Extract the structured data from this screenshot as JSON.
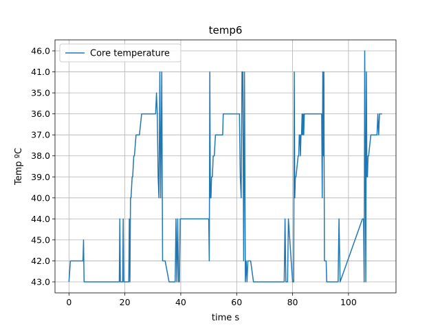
{
  "chart_data": {
    "type": "line",
    "title": "temp6",
    "xlabel": "time s",
    "ylabel": "Temp ºC",
    "xlim": [
      -5,
      117
    ],
    "xticks": [
      0,
      20,
      40,
      60,
      80,
      100
    ],
    "y_categories": [
      "43.0",
      "42.0",
      "45.0",
      "44.0",
      "40.0",
      "39.0",
      "38.0",
      "37.0",
      "36.0",
      "35.0",
      "41.0",
      "46.0"
    ],
    "grid": true,
    "legend_position": "top-left",
    "colors": {
      "series": "#1f77b4"
    },
    "series": [
      {
        "name": "Core temperature",
        "x": [
          0,
          0.5,
          1,
          5,
          5.2,
          5.4,
          5.6,
          6,
          10,
          18,
          18.2,
          18.4,
          18.6,
          19.2,
          19.4,
          19.6,
          20,
          21.4,
          21.6,
          21.8,
          22,
          22.2,
          22.6,
          22.8,
          23.2,
          23.4,
          24,
          24.2,
          25,
          25.2,
          26,
          26.5,
          31,
          31.3,
          31.6,
          31.9,
          32.2,
          32.5,
          32.8,
          33.2,
          33.5,
          33.8,
          34.1,
          34.4,
          35.8,
          36,
          38,
          38.3,
          38.6,
          38.9,
          39.2,
          39.5,
          39.8,
          40.1,
          40.4,
          40.7,
          41,
          50,
          50.2,
          50.4,
          50.6,
          50.8,
          51,
          51.3,
          51.6,
          52,
          52.4,
          53,
          53.2,
          55,
          55.2,
          56,
          56.2,
          61,
          61.3,
          61.6,
          61.9,
          62.2,
          62.5,
          62.8,
          63.1,
          63.4,
          63.7,
          64,
          65,
          66,
          76,
          77,
          77.3,
          77.6,
          77.9,
          78.2,
          78.5,
          80,
          80.2,
          80.4,
          80.6,
          80.8,
          81,
          81.2,
          82,
          82.2,
          82.4,
          82.6,
          82.8,
          83,
          83.2,
          83.4,
          83.6,
          83.8,
          84,
          84.2,
          84.5,
          85,
          90,
          90.2,
          90.4,
          90.6,
          90.8,
          91,
          91.2,
          91.4,
          92,
          92.2,
          96,
          96.3,
          96.6,
          97,
          105,
          105.2,
          105.4,
          105.6,
          105.8,
          106,
          106.2,
          106.4,
          106.6,
          106.8,
          107,
          107.2,
          108,
          108.2,
          110,
          110.2,
          110.5,
          110.8,
          111.1,
          111.4,
          112
        ],
        "y": [
          "43.0",
          "42.0",
          "42.0",
          "42.0",
          "45.0",
          "43.0",
          "43.0",
          "43.0",
          "43.0",
          "43.0",
          "44.0",
          "43.0",
          "43.0",
          "43.0",
          "44.0",
          "43.0",
          "43.0",
          "43.0",
          "44.0",
          "43.0",
          "40.0",
          "40.0",
          "39.0",
          "39.0",
          "38.0",
          "38.0",
          "37.0",
          "37.0",
          "37.0",
          "37.0",
          "36.0",
          "36.0",
          "36.0",
          "35.0",
          "36.0",
          "39.0",
          "40.0",
          "41.0",
          "40.0",
          "41.0",
          "42.0",
          "42.0",
          "42.0",
          "42.0",
          "43.0",
          "43.0",
          "43.0",
          "44.0",
          "43.0",
          "44.0",
          "43.0",
          "43.0",
          "44.0",
          "44.0",
          "44.0",
          "44.0",
          "44.0",
          "44.0",
          "42.0",
          "41.0",
          "40.0",
          "40.0",
          "39.0",
          "39.0",
          "38.0",
          "38.0",
          "37.0",
          "37.0",
          "37.0",
          "37.0",
          "36.0",
          "36.0",
          "36.0",
          "36.0",
          "39.0",
          "40.0",
          "41.0",
          "41.0",
          "42.0",
          "41.0",
          "43.0",
          "42.0",
          "43.0",
          "42.0",
          "42.0",
          "43.0",
          "43.0",
          "43.0",
          "44.0",
          "43.0",
          "43.0",
          "43.0",
          "44.0",
          "43.0",
          "43.0",
          "43.0",
          "41.0",
          "40.0",
          "39.0",
          "39.0",
          "38.0",
          "38.0",
          "37.0",
          "37.0",
          "38.0",
          "37.0",
          "37.0",
          "36.0",
          "37.0",
          "36.0",
          "37.0",
          "36.0",
          "36.0",
          "36.0",
          "36.0",
          "36.0",
          "36.0",
          "40.0",
          "41.0",
          "38.0",
          "41.0",
          "42.0",
          "42.0",
          "43.0",
          "43.0",
          "43.0",
          "44.0",
          "43.0",
          "44.0",
          "44.0",
          "44.0",
          "43.0",
          "46.0",
          "38.0",
          "43.0",
          "41.0",
          "39.0",
          "39.0",
          "38.0",
          "38.0",
          "37.0",
          "37.0",
          "37.0",
          "37.0",
          "36.0",
          "37.0",
          "36.0",
          "36.0",
          "36.0"
        ]
      }
    ]
  }
}
